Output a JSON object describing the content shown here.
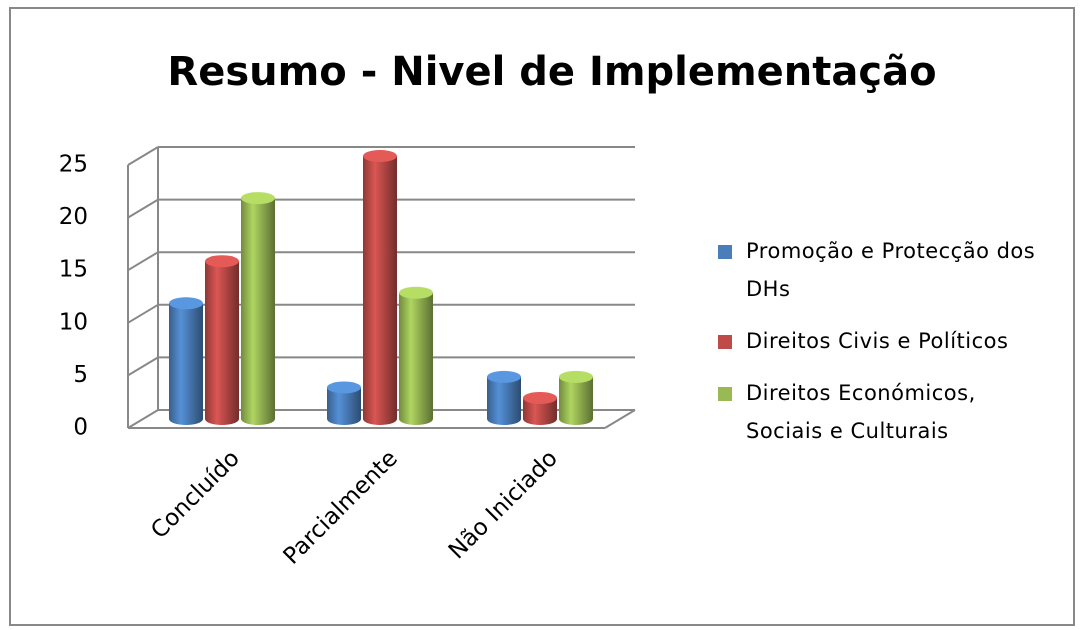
{
  "chart_data": {
    "type": "bar3d",
    "title": "Resumo - Nivel de Implementação",
    "categories": [
      "Concluído",
      "Parcialmente",
      "Não Iniciado"
    ],
    "series": [
      {
        "name": "Promoção e Protecção dos DHs",
        "color": "#4a7ebb",
        "values": [
          11,
          3,
          4
        ]
      },
      {
        "name": "Direitos Civis e Políticos",
        "color": "#be4b48",
        "values": [
          15,
          25,
          2
        ]
      },
      {
        "name": "Direitos Económicos, Sociais e Culturais",
        "color": "#98b954",
        "values": [
          21,
          12,
          4
        ]
      }
    ],
    "ylim": [
      0,
      25
    ],
    "yticks": [
      0,
      5,
      10,
      15,
      20,
      25
    ],
    "grid": true,
    "legend": "right"
  }
}
